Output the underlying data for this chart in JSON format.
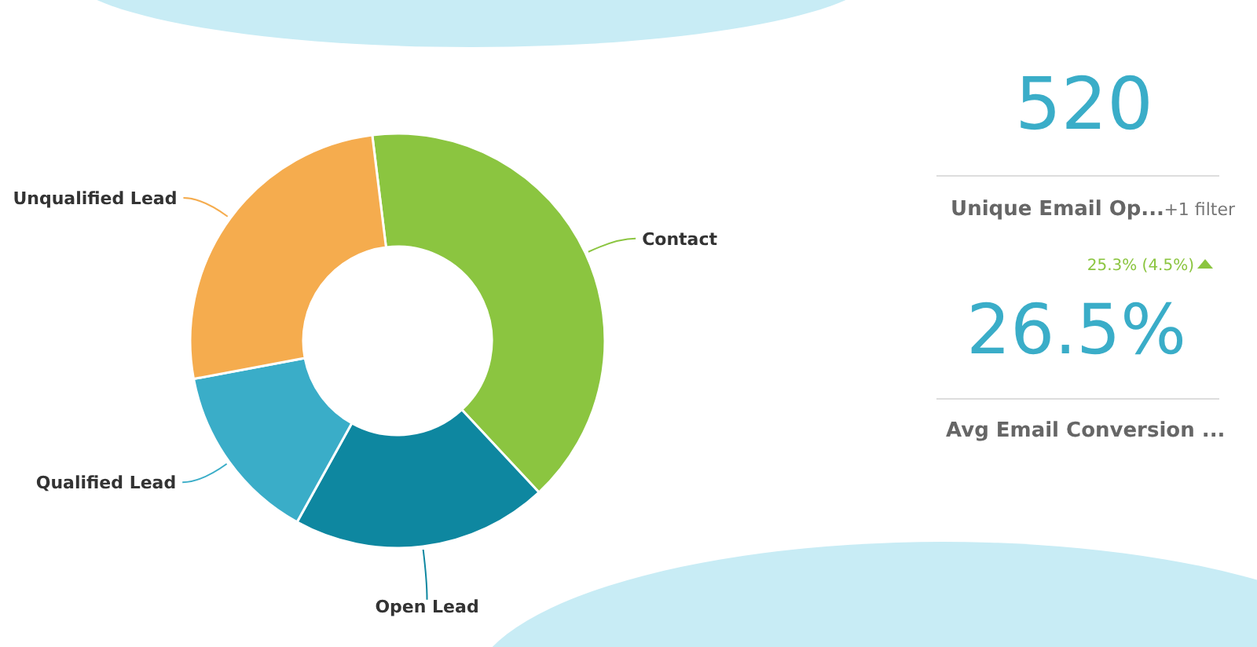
{
  "chart_data": [
    {
      "type": "donut",
      "categories": [
        "Contact",
        "Open Lead",
        "Qualified Lead",
        "Unqualified Lead"
      ],
      "values": [
        40,
        20,
        14,
        26
      ],
      "colors": [
        "#8bc540",
        "#0e87a0",
        "#3aadc8",
        "#f5ac4e"
      ]
    },
    {
      "type": "other",
      "annotations": [
        "520",
        "Unique Email Op...",
        "+1 filter",
        "25.3% (4.5%)",
        "26.5%",
        "Avg Email Conversion ..."
      ]
    }
  ]
}
